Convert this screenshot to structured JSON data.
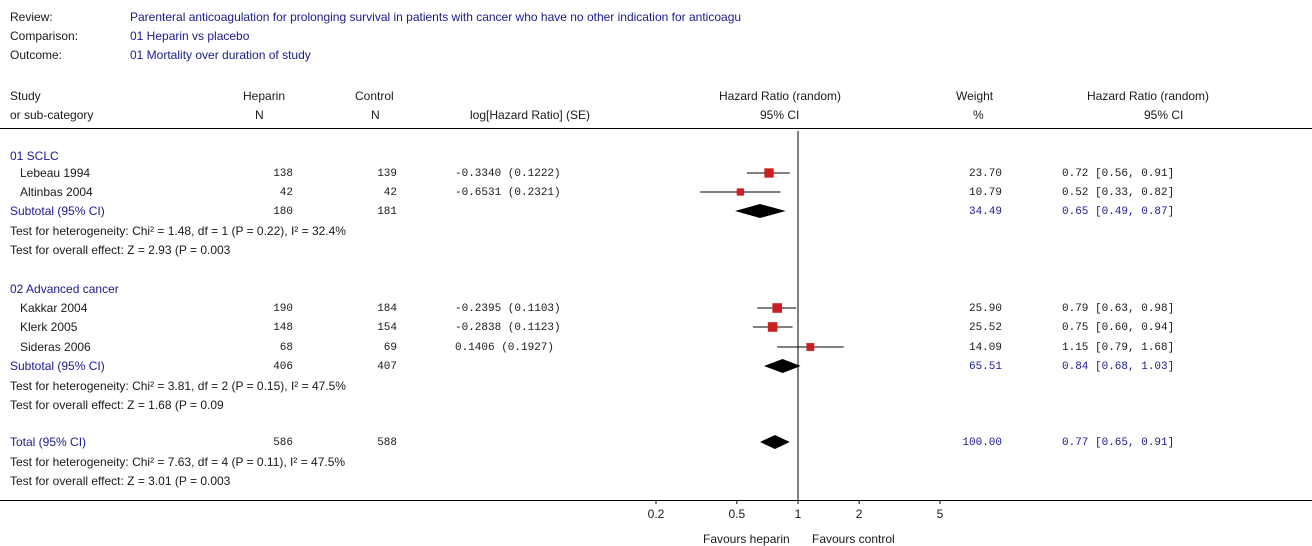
{
  "header": {
    "review_label": "Review:",
    "review_value": "Parenteral anticoagulation for prolonging survival in patients with cancer who have no other indication for anticoagu",
    "comparison_label": "Comparison:",
    "comparison_value": "01 Heparin vs placebo",
    "outcome_label": "Outcome:",
    "outcome_value": "01 Mortality over duration of study"
  },
  "columns": {
    "study": [
      "Study",
      "or sub-category"
    ],
    "heparin": [
      "Heparin",
      "N"
    ],
    "control": [
      "Control",
      "N"
    ],
    "loghr": "log[Hazard Ratio] (SE)",
    "hr_plot": [
      "Hazard Ratio (random)",
      "95% CI"
    ],
    "weight": [
      "Weight",
      "%"
    ],
    "hr_text": [
      "Hazard Ratio (random)",
      "95% CI"
    ]
  },
  "groups": [
    {
      "title": "01 SCLC",
      "studies": [
        {
          "name": "Lebeau 1994",
          "heparin_n": "138",
          "control_n": "139",
          "loghr_se": "-0.3340 (0.1222)",
          "weight": "23.70",
          "hr_ci": "0.72 [0.56, 0.91]"
        },
        {
          "name": "Altinbas 2004",
          "heparin_n": "42",
          "control_n": "42",
          "loghr_se": "-0.6531 (0.2321)",
          "weight": "10.79",
          "hr_ci": "0.52 [0.33, 0.82]"
        }
      ],
      "subtotal": {
        "label": "Subtotal (95% CI)",
        "heparin_n": "180",
        "control_n": "181",
        "weight": "34.49",
        "hr_ci": "0.65 [0.49, 0.87]"
      },
      "heterogeneity": "Test for heterogeneity: Chi² = 1.48, df = 1 (P = 0.22), I² = 32.4%",
      "overall": "Test for overall effect: Z = 2.93 (P = 0.003"
    },
    {
      "title": "02 Advanced cancer",
      "studies": [
        {
          "name": "Kakkar 2004",
          "heparin_n": "190",
          "control_n": "184",
          "loghr_se": "-0.2395 (0.1103)",
          "weight": "25.90",
          "hr_ci": "0.79 [0.63, 0.98]"
        },
        {
          "name": "Klerk 2005",
          "heparin_n": "148",
          "control_n": "154",
          "loghr_se": "-0.2838 (0.1123)",
          "weight": "25.52",
          "hr_ci": "0.75 [0.60, 0.94]"
        },
        {
          "name": "Sideras 2006",
          "heparin_n": "68",
          "control_n": "69",
          "loghr_se": "0.1406 (0.1927)",
          "weight": "14.09",
          "hr_ci": "1.15 [0.79, 1.68]"
        }
      ],
      "subtotal": {
        "label": "Subtotal (95% CI)",
        "heparin_n": "406",
        "control_n": "407",
        "weight": "65.51",
        "hr_ci": "0.84 [0.68, 1.03]"
      },
      "heterogeneity": "Test for heterogeneity: Chi² = 3.81, df = 2 (P = 0.15), I² = 47.5%",
      "overall": "Test for overall effect: Z = 1.68 (P = 0.09"
    }
  ],
  "total": {
    "label": "Total (95% CI)",
    "heparin_n": "586",
    "control_n": "588",
    "weight": "100.00",
    "hr_ci": "0.77 [0.65, 0.91]",
    "heterogeneity": "Test for heterogeneity: Chi² = 7.63, df = 4 (P = 0.11), I² = 47.5%",
    "overall": "Test for overall effect: Z = 3.01 (P = 0.003"
  },
  "axis": {
    "ticks": [
      "0.2",
      "0.5",
      "1",
      "2",
      "5"
    ],
    "favours_left": "Favours heparin",
    "favours_right": "Favours control"
  },
  "colors": {
    "square": "#cc1f1f",
    "diamond": "#000000",
    "subtotal_text": "#1a1a8c"
  },
  "chart_data": {
    "type": "forest",
    "scale": "log",
    "xlim": [
      0.2,
      5
    ],
    "null_line": 1,
    "studies": [
      {
        "name": "Lebeau 1994",
        "group": "01 SCLC",
        "hr": 0.72,
        "ci": [
          0.56,
          0.91
        ],
        "weight": 23.7
      },
      {
        "name": "Altinbas 2004",
        "group": "01 SCLC",
        "hr": 0.52,
        "ci": [
          0.33,
          0.82
        ],
        "weight": 10.79
      },
      {
        "name": "Kakkar 2004",
        "group": "02 Advanced cancer",
        "hr": 0.79,
        "ci": [
          0.63,
          0.98
        ],
        "weight": 25.9
      },
      {
        "name": "Klerk 2005",
        "group": "02 Advanced cancer",
        "hr": 0.75,
        "ci": [
          0.6,
          0.94
        ],
        "weight": 25.52
      },
      {
        "name": "Sideras 2006",
        "group": "02 Advanced cancer",
        "hr": 1.15,
        "ci": [
          0.79,
          1.68
        ],
        "weight": 14.09
      }
    ],
    "pooled": [
      {
        "name": "Subtotal 01 SCLC",
        "hr": 0.65,
        "ci": [
          0.49,
          0.87
        ]
      },
      {
        "name": "Subtotal 02 Advanced cancer",
        "hr": 0.84,
        "ci": [
          0.68,
          1.03
        ]
      },
      {
        "name": "Total",
        "hr": 0.77,
        "ci": [
          0.65,
          0.91
        ]
      }
    ]
  }
}
